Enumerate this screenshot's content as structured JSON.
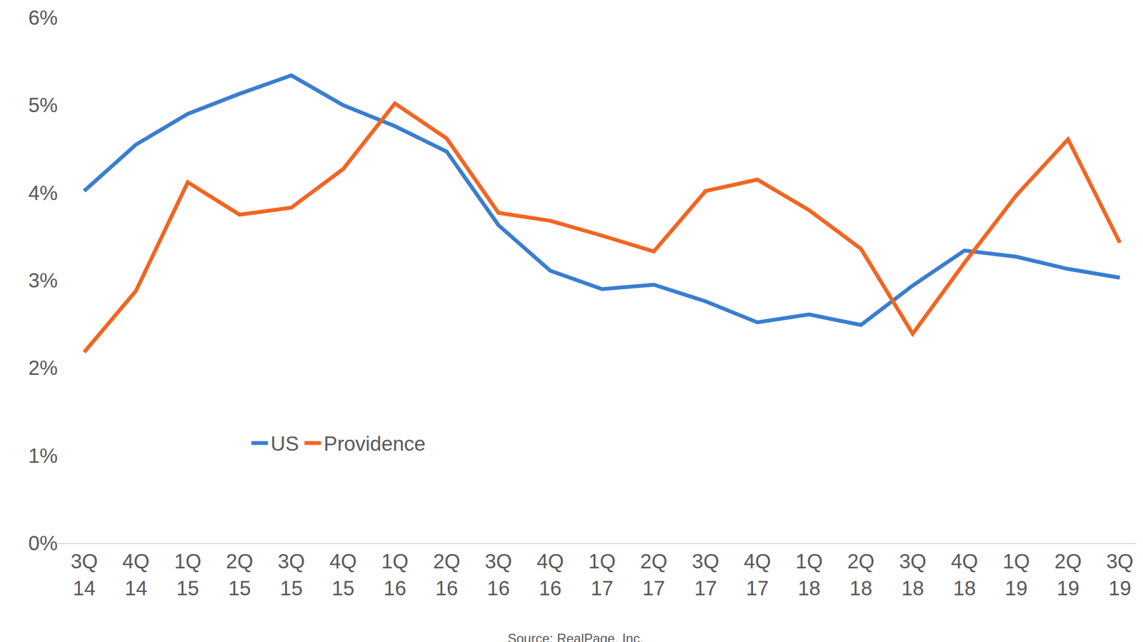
{
  "chart_data": {
    "type": "line",
    "categories": [
      "3Q 14",
      "4Q 14",
      "1Q 15",
      "2Q 15",
      "3Q 15",
      "4Q 15",
      "1Q 16",
      "2Q 16",
      "3Q 16",
      "4Q 16",
      "1Q 17",
      "2Q 17",
      "3Q 17",
      "4Q 17",
      "1Q 18",
      "2Q 18",
      "3Q 18",
      "4Q 18",
      "1Q 19",
      "2Q 19",
      "3Q 19"
    ],
    "series": [
      {
        "name": "US",
        "color": "#3a7dd1",
        "values": [
          4.02,
          4.55,
          4.9,
          5.13,
          5.34,
          5.0,
          4.76,
          4.47,
          3.63,
          3.11,
          2.9,
          2.95,
          2.76,
          2.52,
          2.61,
          2.49,
          2.94,
          3.34,
          3.27,
          3.13,
          3.03
        ]
      },
      {
        "name": "Providence",
        "color": "#f26522",
        "values": [
          2.18,
          2.88,
          4.12,
          3.75,
          3.83,
          4.27,
          5.02,
          4.62,
          3.77,
          3.68,
          3.51,
          3.33,
          4.02,
          4.15,
          3.8,
          3.36,
          2.39,
          3.2,
          3.97,
          4.61,
          3.43
        ]
      }
    ],
    "ylim": [
      0,
      6
    ],
    "yticks": [
      {
        "value": 0,
        "label": "0%"
      },
      {
        "value": 1,
        "label": "1%"
      },
      {
        "value": 2,
        "label": "2%"
      },
      {
        "value": 3,
        "label": "3%"
      },
      {
        "value": 4,
        "label": "4%"
      },
      {
        "value": 5,
        "label": "5%"
      },
      {
        "value": 6,
        "label": "6%"
      }
    ],
    "grid": false,
    "legend": "lower left",
    "annotations": [
      "Source: RealPage, Inc."
    ]
  }
}
